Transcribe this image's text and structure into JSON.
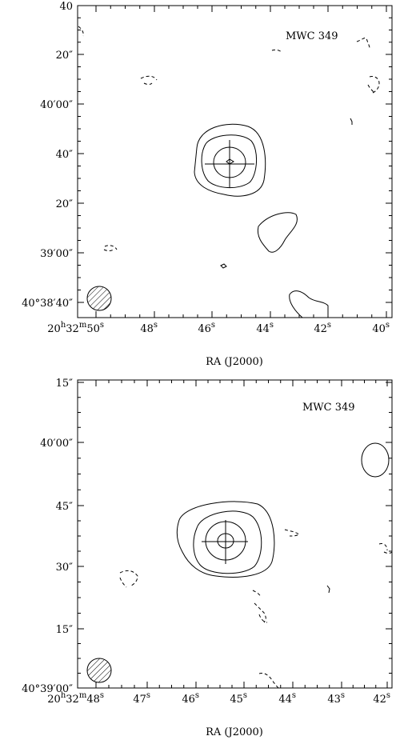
{
  "panels": [
    {
      "name": "MWC 349",
      "y_ticks": [
        "40",
        "20″",
        "40′00″",
        "40″",
        "20″",
        "39′00″",
        "40°38′40″"
      ],
      "x_ticks": [
        [
          [
            "20",
            "h"
          ],
          [
            "32",
            "m"
          ],
          [
            "50",
            "s"
          ]
        ],
        [
          [
            "48",
            "s"
          ]
        ],
        [
          [
            "46",
            "s"
          ]
        ],
        [
          [
            "44",
            "s"
          ]
        ],
        [
          [
            "42",
            "s"
          ]
        ],
        [
          [
            "40",
            "s"
          ]
        ]
      ],
      "x_axis_label": "RA (J2000)"
    },
    {
      "name": "MWC 349",
      "y_ticks": [
        "15″",
        "40′00″",
        "45″",
        "30″",
        "15″",
        "40°39′00″"
      ],
      "x_ticks": [
        [
          [
            "20",
            "h"
          ],
          [
            "32",
            "m"
          ],
          [
            "48",
            "s"
          ]
        ],
        [
          [
            "47",
            "s"
          ]
        ],
        [
          [
            "46",
            "s"
          ]
        ],
        [
          [
            "45",
            "s"
          ]
        ],
        [
          [
            "44",
            "s"
          ]
        ],
        [
          [
            "43",
            "s"
          ]
        ],
        [
          [
            "42",
            "s"
          ]
        ]
      ],
      "x_axis_label": "RA (J2000)"
    }
  ]
}
